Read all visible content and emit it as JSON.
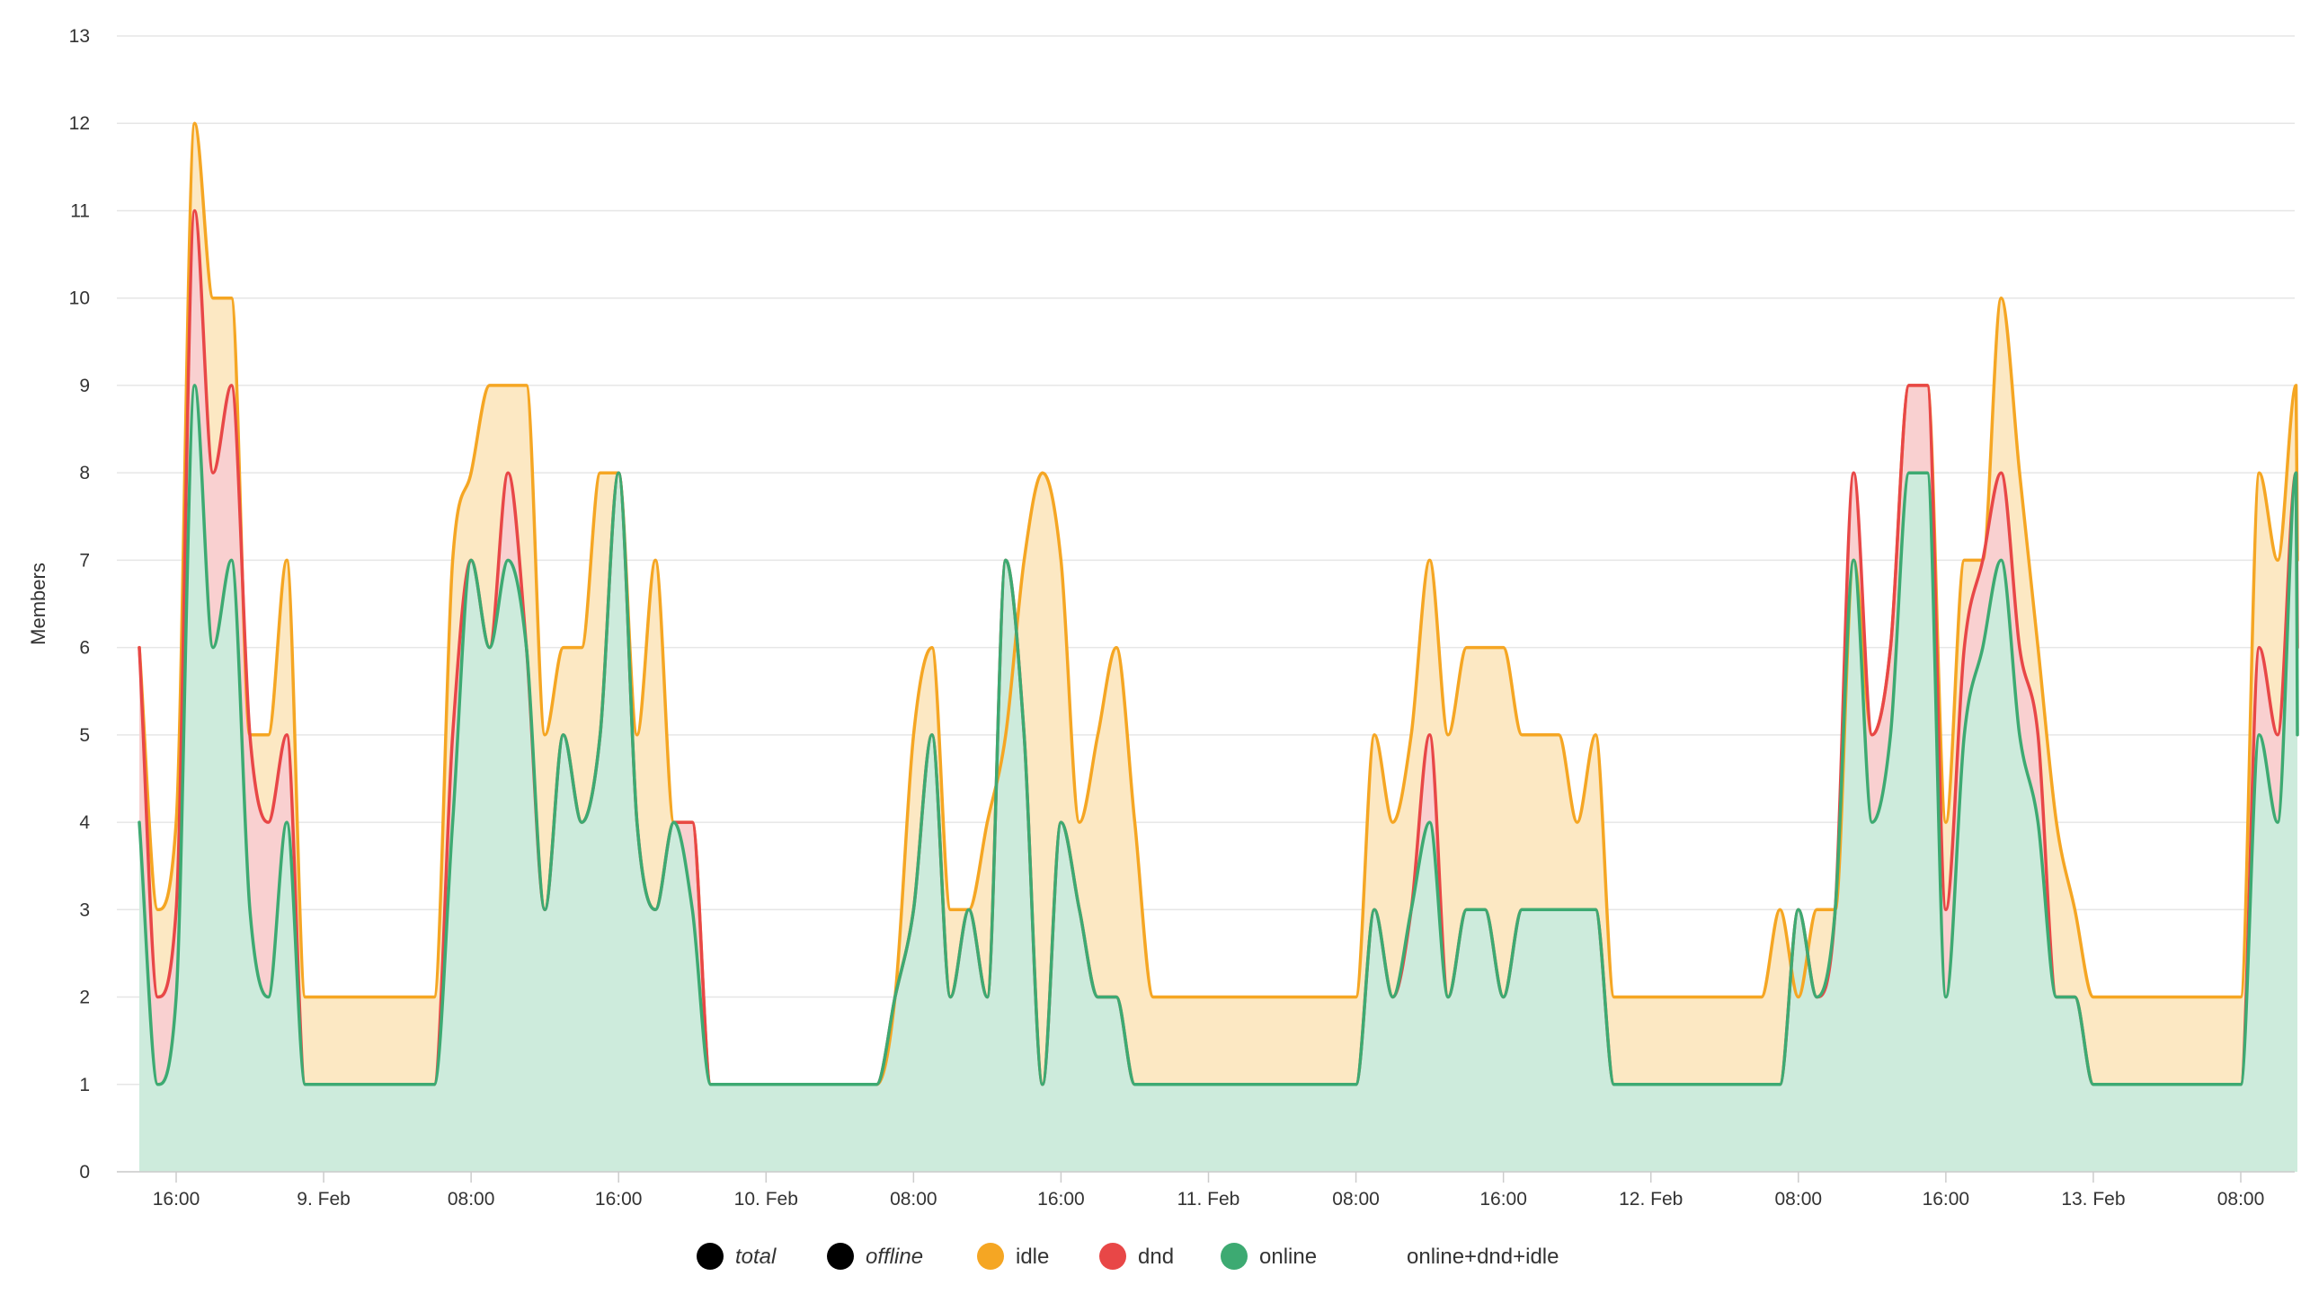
{
  "chart_data": {
    "type": "area",
    "ylabel": "Members",
    "xlabel": "",
    "ylim": [
      0,
      13
    ],
    "y_ticks": [
      0,
      1,
      2,
      3,
      4,
      5,
      6,
      7,
      8,
      9,
      10,
      11,
      12,
      13
    ],
    "x_ticks": [
      {
        "label": "16:00",
        "t": 0
      },
      {
        "label": "9. Feb",
        "t": 8
      },
      {
        "label": "08:00",
        "t": 16
      },
      {
        "label": "16:00",
        "t": 24
      },
      {
        "label": "10. Feb",
        "t": 32
      },
      {
        "label": "08:00",
        "t": 40
      },
      {
        "label": "16:00",
        "t": 48
      },
      {
        "label": "11. Feb",
        "t": 56
      },
      {
        "label": "08:00",
        "t": 64
      },
      {
        "label": "16:00",
        "t": 72
      },
      {
        "label": "12. Feb",
        "t": 80
      },
      {
        "label": "08:00",
        "t": 88
      },
      {
        "label": "16:00",
        "t": 96
      },
      {
        "label": "13. Feb",
        "t": 104
      },
      {
        "label": "08:00",
        "t": 112
      }
    ],
    "x_unit": "hours after 8 Feb 16:00",
    "x_range": [
      -2,
      115
    ],
    "grid": true,
    "legend_position": "bottom-center",
    "series": [
      {
        "name": "total",
        "color": "#000000",
        "italic": true,
        "values": []
      },
      {
        "name": "offline",
        "color": "#000000",
        "italic": true,
        "values": []
      },
      {
        "name": "idle",
        "color": "#f5a623",
        "fill": "#fce8c3",
        "points": [
          [
            -2,
            6
          ],
          [
            -1,
            3
          ],
          [
            0,
            4
          ],
          [
            1,
            12
          ],
          [
            2,
            10
          ],
          [
            3,
            10
          ],
          [
            4,
            5
          ],
          [
            5,
            5
          ],
          [
            6,
            7
          ],
          [
            7,
            2
          ],
          [
            14,
            2
          ],
          [
            15,
            7
          ],
          [
            16,
            8
          ],
          [
            17,
            9
          ],
          [
            19,
            9
          ],
          [
            20,
            5
          ],
          [
            21,
            6
          ],
          [
            22,
            6
          ],
          [
            23,
            8
          ],
          [
            24,
            8
          ],
          [
            25,
            5
          ],
          [
            26,
            7
          ],
          [
            27,
            4
          ],
          [
            28,
            4
          ],
          [
            29,
            1
          ],
          [
            38,
            1
          ],
          [
            39,
            2
          ],
          [
            40,
            5
          ],
          [
            41,
            6
          ],
          [
            42,
            3
          ],
          [
            43,
            3
          ],
          [
            44,
            4
          ],
          [
            45,
            5
          ],
          [
            46,
            7
          ],
          [
            47,
            8
          ],
          [
            48,
            7
          ],
          [
            49,
            4
          ],
          [
            50,
            5
          ],
          [
            51,
            6
          ],
          [
            52,
            4
          ],
          [
            53,
            2
          ],
          [
            64,
            2
          ],
          [
            65,
            5
          ],
          [
            66,
            4
          ],
          [
            67,
            5
          ],
          [
            68,
            7
          ],
          [
            69,
            5
          ],
          [
            70,
            6
          ],
          [
            72,
            6
          ],
          [
            73,
            5
          ],
          [
            75,
            5
          ],
          [
            76,
            4
          ],
          [
            77,
            5
          ],
          [
            78,
            2
          ],
          [
            86,
            2
          ],
          [
            87,
            3
          ],
          [
            88,
            2
          ],
          [
            89,
            3
          ],
          [
            90,
            3
          ],
          [
            91,
            7
          ],
          [
            92,
            5
          ],
          [
            93,
            6
          ],
          [
            94,
            9
          ],
          [
            95,
            9
          ],
          [
            96,
            4
          ],
          [
            97,
            7
          ],
          [
            98,
            7
          ],
          [
            99,
            10
          ],
          [
            100,
            8
          ],
          [
            101,
            6
          ],
          [
            102,
            4
          ],
          [
            103,
            3
          ],
          [
            104,
            2
          ],
          [
            112,
            2
          ],
          [
            113,
            8
          ],
          [
            114,
            7
          ],
          [
            115,
            9
          ],
          [
            116,
            7
          ]
        ]
      },
      {
        "name": "dnd",
        "color": "#e84747",
        "fill": "#f9d0d0",
        "points": [
          [
            -2,
            6
          ],
          [
            -1,
            2
          ],
          [
            0,
            3
          ],
          [
            1,
            11
          ],
          [
            2,
            8
          ],
          [
            3,
            9
          ],
          [
            4,
            5
          ],
          [
            5,
            4
          ],
          [
            6,
            5
          ],
          [
            7,
            1
          ],
          [
            14,
            1
          ],
          [
            15,
            5
          ],
          [
            16,
            7
          ],
          [
            17,
            6
          ],
          [
            18,
            8
          ],
          [
            19,
            6
          ],
          [
            20,
            3
          ],
          [
            21,
            5
          ],
          [
            22,
            4
          ],
          [
            23,
            5
          ],
          [
            24,
            8
          ],
          [
            25,
            4
          ],
          [
            26,
            3
          ],
          [
            27,
            4
          ],
          [
            28,
            4
          ],
          [
            29,
            1
          ],
          [
            38,
            1
          ],
          [
            39,
            2
          ],
          [
            40,
            3
          ],
          [
            41,
            5
          ],
          [
            42,
            2
          ],
          [
            43,
            3
          ],
          [
            44,
            2
          ],
          [
            45,
            7
          ],
          [
            46,
            5
          ],
          [
            47,
            1
          ],
          [
            48,
            4
          ],
          [
            49,
            3
          ],
          [
            50,
            2
          ],
          [
            51,
            2
          ],
          [
            52,
            1
          ],
          [
            64,
            1
          ],
          [
            65,
            3
          ],
          [
            66,
            2
          ],
          [
            67,
            3
          ],
          [
            68,
            5
          ],
          [
            69,
            2
          ],
          [
            70,
            3
          ],
          [
            71,
            3
          ],
          [
            72,
            2
          ],
          [
            73,
            3
          ],
          [
            74,
            3
          ],
          [
            75,
            3
          ],
          [
            76,
            3
          ],
          [
            77,
            3
          ],
          [
            78,
            1
          ],
          [
            87,
            1
          ],
          [
            88,
            3
          ],
          [
            89,
            2
          ],
          [
            90,
            3
          ],
          [
            91,
            8
          ],
          [
            92,
            5
          ],
          [
            93,
            6
          ],
          [
            94,
            9
          ],
          [
            95,
            9
          ],
          [
            96,
            3
          ],
          [
            97,
            6
          ],
          [
            98,
            7
          ],
          [
            99,
            8
          ],
          [
            100,
            6
          ],
          [
            101,
            5
          ],
          [
            102,
            2
          ],
          [
            103,
            2
          ],
          [
            104,
            1
          ],
          [
            112,
            1
          ],
          [
            113,
            6
          ],
          [
            114,
            5
          ],
          [
            115,
            8
          ],
          [
            116,
            6
          ]
        ]
      },
      {
        "name": "online",
        "color": "#3daa72",
        "fill": "#cdebdc",
        "points": [
          [
            -2,
            4
          ],
          [
            -1,
            1
          ],
          [
            0,
            2
          ],
          [
            1,
            9
          ],
          [
            2,
            6
          ],
          [
            3,
            7
          ],
          [
            4,
            3
          ],
          [
            5,
            2
          ],
          [
            6,
            4
          ],
          [
            7,
            1
          ],
          [
            14,
            1
          ],
          [
            15,
            4
          ],
          [
            16,
            7
          ],
          [
            17,
            6
          ],
          [
            18,
            7
          ],
          [
            19,
            6
          ],
          [
            20,
            3
          ],
          [
            21,
            5
          ],
          [
            22,
            4
          ],
          [
            23,
            5
          ],
          [
            24,
            8
          ],
          [
            25,
            4
          ],
          [
            26,
            3
          ],
          [
            27,
            4
          ],
          [
            28,
            3
          ],
          [
            29,
            1
          ],
          [
            38,
            1
          ],
          [
            39,
            2
          ],
          [
            40,
            3
          ],
          [
            41,
            5
          ],
          [
            42,
            2
          ],
          [
            43,
            3
          ],
          [
            44,
            2
          ],
          [
            45,
            7
          ],
          [
            46,
            5
          ],
          [
            47,
            1
          ],
          [
            48,
            4
          ],
          [
            49,
            3
          ],
          [
            50,
            2
          ],
          [
            51,
            2
          ],
          [
            52,
            1
          ],
          [
            64,
            1
          ],
          [
            65,
            3
          ],
          [
            66,
            2
          ],
          [
            67,
            3
          ],
          [
            68,
            4
          ],
          [
            69,
            2
          ],
          [
            70,
            3
          ],
          [
            71,
            3
          ],
          [
            72,
            2
          ],
          [
            73,
            3
          ],
          [
            74,
            3
          ],
          [
            75,
            3
          ],
          [
            76,
            3
          ],
          [
            77,
            3
          ],
          [
            78,
            1
          ],
          [
            87,
            1
          ],
          [
            88,
            3
          ],
          [
            89,
            2
          ],
          [
            90,
            3
          ],
          [
            91,
            7
          ],
          [
            92,
            4
          ],
          [
            93,
            5
          ],
          [
            94,
            8
          ],
          [
            95,
            8
          ],
          [
            96,
            2
          ],
          [
            97,
            5
          ],
          [
            98,
            6
          ],
          [
            99,
            7
          ],
          [
            100,
            5
          ],
          [
            101,
            4
          ],
          [
            102,
            2
          ],
          [
            103,
            2
          ],
          [
            104,
            1
          ],
          [
            112,
            1
          ],
          [
            113,
            5
          ],
          [
            114,
            4
          ],
          [
            115,
            8
          ],
          [
            116,
            5
          ]
        ]
      },
      {
        "name": "online+dnd+idle",
        "color": "",
        "values": []
      }
    ]
  }
}
